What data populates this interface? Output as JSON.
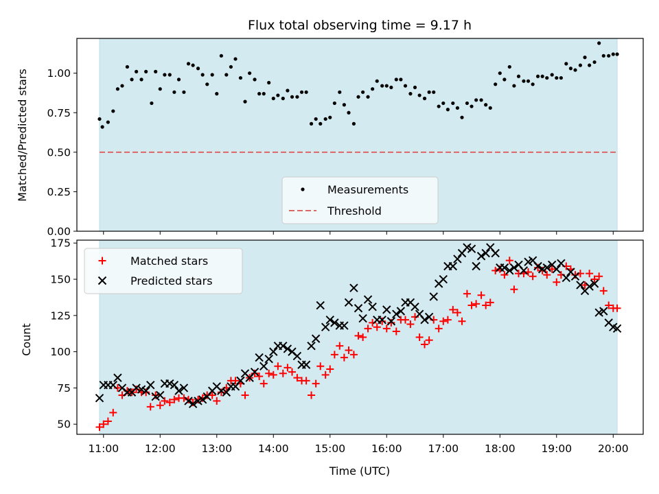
{
  "chart_data": [
    {
      "type": "scatter",
      "title": "Flux total observing time = 9.17 h",
      "xlabel": "",
      "ylabel": "Matched/Predicted stars",
      "ylim": [
        0,
        1.22
      ],
      "yticks": [
        "0.00",
        "0.25",
        "0.50",
        "0.75",
        "1.00"
      ],
      "ytick_values": [
        0,
        0.25,
        0.5,
        0.75,
        1.0
      ],
      "legend_position": "lower-center",
      "threshold": 0.5,
      "colors": {
        "measurements": "#000000",
        "threshold": "#e06666",
        "span": "#d3eaf0"
      },
      "series": [
        {
          "name": "Measurements",
          "points": [
            [
              10.93,
              0.71
            ],
            [
              10.98,
              0.66
            ],
            [
              11.08,
              0.69
            ],
            [
              11.17,
              0.76
            ],
            [
              11.25,
              0.9
            ],
            [
              11.33,
              0.92
            ],
            [
              11.42,
              1.04
            ],
            [
              11.5,
              0.96
            ],
            [
              11.58,
              1.01
            ],
            [
              11.67,
              0.96
            ],
            [
              11.75,
              1.01
            ],
            [
              11.85,
              0.81
            ],
            [
              11.92,
              1.01
            ],
            [
              12.0,
              0.9
            ],
            [
              12.08,
              0.99
            ],
            [
              12.17,
              0.99
            ],
            [
              12.25,
              0.88
            ],
            [
              12.33,
              0.96
            ],
            [
              12.42,
              0.88
            ],
            [
              12.5,
              1.06
            ],
            [
              12.58,
              1.05
            ],
            [
              12.67,
              1.03
            ],
            [
              12.75,
              0.99
            ],
            [
              12.83,
              0.93
            ],
            [
              12.92,
              0.99
            ],
            [
              13.0,
              0.87
            ],
            [
              13.08,
              1.11
            ],
            [
              13.17,
              0.99
            ],
            [
              13.25,
              1.04
            ],
            [
              13.33,
              1.09
            ],
            [
              13.42,
              0.97
            ],
            [
              13.5,
              0.82
            ],
            [
              13.58,
              1.0
            ],
            [
              13.67,
              0.96
            ],
            [
              13.75,
              0.87
            ],
            [
              13.83,
              0.87
            ],
            [
              13.92,
              0.94
            ],
            [
              14.0,
              0.84
            ],
            [
              14.08,
              0.86
            ],
            [
              14.17,
              0.84
            ],
            [
              14.25,
              0.89
            ],
            [
              14.33,
              0.85
            ],
            [
              14.42,
              0.85
            ],
            [
              14.5,
              0.88
            ],
            [
              14.58,
              0.88
            ],
            [
              14.67,
              0.68
            ],
            [
              14.75,
              0.71
            ],
            [
              14.83,
              0.68
            ],
            [
              14.92,
              0.71
            ],
            [
              15.0,
              0.72
            ],
            [
              15.08,
              0.81
            ],
            [
              15.17,
              0.88
            ],
            [
              15.25,
              0.8
            ],
            [
              15.33,
              0.75
            ],
            [
              15.42,
              0.68
            ],
            [
              15.5,
              0.85
            ],
            [
              15.58,
              0.88
            ],
            [
              15.67,
              0.85
            ],
            [
              15.75,
              0.9
            ],
            [
              15.83,
              0.95
            ],
            [
              15.92,
              0.92
            ],
            [
              16.0,
              0.92
            ],
            [
              16.08,
              0.91
            ],
            [
              16.17,
              0.96
            ],
            [
              16.25,
              0.96
            ],
            [
              16.33,
              0.92
            ],
            [
              16.42,
              0.87
            ],
            [
              16.5,
              0.91
            ],
            [
              16.58,
              0.86
            ],
            [
              16.67,
              0.84
            ],
            [
              16.75,
              0.88
            ],
            [
              16.83,
              0.88
            ],
            [
              16.92,
              0.79
            ],
            [
              17.0,
              0.81
            ],
            [
              17.08,
              0.77
            ],
            [
              17.17,
              0.81
            ],
            [
              17.25,
              0.78
            ],
            [
              17.33,
              0.72
            ],
            [
              17.42,
              0.81
            ],
            [
              17.5,
              0.79
            ],
            [
              17.58,
              0.83
            ],
            [
              17.67,
              0.83
            ],
            [
              17.75,
              0.8
            ],
            [
              17.83,
              0.78
            ],
            [
              17.92,
              0.93
            ],
            [
              18.0,
              1.0
            ],
            [
              18.08,
              0.96
            ],
            [
              18.17,
              1.04
            ],
            [
              18.25,
              0.92
            ],
            [
              18.33,
              0.98
            ],
            [
              18.42,
              0.95
            ],
            [
              18.5,
              0.95
            ],
            [
              18.58,
              0.93
            ],
            [
              18.67,
              0.98
            ],
            [
              18.75,
              0.98
            ],
            [
              18.83,
              0.97
            ],
            [
              18.92,
              0.99
            ],
            [
              19.0,
              0.97
            ],
            [
              19.08,
              0.97
            ],
            [
              19.17,
              1.06
            ],
            [
              19.25,
              1.03
            ],
            [
              19.33,
              1.02
            ],
            [
              19.42,
              1.05
            ],
            [
              19.5,
              1.1
            ],
            [
              19.58,
              1.05
            ],
            [
              19.67,
              1.07
            ],
            [
              19.75,
              1.19
            ],
            [
              19.83,
              1.11
            ],
            [
              19.92,
              1.11
            ],
            [
              20.0,
              1.12
            ],
            [
              20.07,
              1.12
            ]
          ]
        },
        {
          "name": "Threshold",
          "x": [
            10.93,
            20.07
          ],
          "values": [
            0.5,
            0.5
          ]
        }
      ]
    },
    {
      "type": "scatter",
      "title": "",
      "xlabel": "Time (UTC)",
      "ylabel": "Count",
      "ylim": [
        43,
        177
      ],
      "yticks": [
        "50",
        "75",
        "100",
        "125",
        "150",
        "175"
      ],
      "ytick_values": [
        50,
        75,
        100,
        125,
        150,
        175
      ],
      "xlim": [
        10.53,
        20.53
      ],
      "xticks": [
        "11:00",
        "12:00",
        "13:00",
        "14:00",
        "15:00",
        "16:00",
        "17:00",
        "18:00",
        "19:00",
        "20:00"
      ],
      "xtick_values": [
        11,
        12,
        13,
        14,
        15,
        16,
        17,
        18,
        19,
        20
      ],
      "span": [
        10.93,
        20.07
      ],
      "legend_position": "upper-left",
      "colors": {
        "matched": "#ff0000",
        "predicted": "#000000"
      },
      "x": [
        10.93,
        11.0,
        11.08,
        11.17,
        11.25,
        11.33,
        11.42,
        11.5,
        11.58,
        11.67,
        11.75,
        11.83,
        11.92,
        12.0,
        12.08,
        12.17,
        12.25,
        12.33,
        12.42,
        12.5,
        12.58,
        12.67,
        12.75,
        12.83,
        12.92,
        13.0,
        13.08,
        13.17,
        13.25,
        13.33,
        13.42,
        13.5,
        13.58,
        13.67,
        13.75,
        13.83,
        13.92,
        14.0,
        14.08,
        14.17,
        14.25,
        14.33,
        14.42,
        14.5,
        14.58,
        14.67,
        14.75,
        14.83,
        14.92,
        15.0,
        15.08,
        15.17,
        15.25,
        15.33,
        15.42,
        15.5,
        15.58,
        15.67,
        15.75,
        15.83,
        15.92,
        16.0,
        16.08,
        16.17,
        16.25,
        16.33,
        16.42,
        16.5,
        16.58,
        16.67,
        16.75,
        16.83,
        16.92,
        17.0,
        17.08,
        17.17,
        17.25,
        17.33,
        17.42,
        17.5,
        17.58,
        17.67,
        17.75,
        17.83,
        17.92,
        18.0,
        18.08,
        18.17,
        18.25,
        18.33,
        18.42,
        18.5,
        18.58,
        18.67,
        18.75,
        18.83,
        18.92,
        19.0,
        19.08,
        19.17,
        19.25,
        19.33,
        19.42,
        19.5,
        19.58,
        19.67,
        19.75,
        19.83,
        19.92,
        20.0,
        20.07
      ],
      "series": [
        {
          "name": "Matched stars",
          "values": [
            48,
            50,
            52,
            58,
            75,
            70,
            73,
            72,
            74,
            72,
            72,
            62,
            70,
            63,
            66,
            65,
            67,
            68,
            68,
            67,
            65,
            67,
            68,
            70,
            70,
            66,
            72,
            75,
            80,
            80,
            78,
            70,
            82,
            85,
            83,
            78,
            85,
            84,
            90,
            85,
            89,
            86,
            82,
            80,
            80,
            70,
            78,
            90,
            84,
            88,
            98,
            104,
            96,
            101,
            98,
            111,
            110,
            116,
            120,
            117,
            121,
            116,
            120,
            114,
            122,
            122,
            119,
            124,
            110,
            105,
            108,
            122,
            116,
            121,
            122,
            129,
            127,
            121,
            140,
            132,
            133,
            139,
            132,
            134,
            156,
            157,
            153,
            163,
            143,
            154,
            154,
            155,
            152,
            158,
            156,
            153,
            157,
            148,
            153,
            159,
            157,
            153,
            154,
            146,
            154,
            150,
            152,
            142,
            132,
            130,
            130
          ]
        },
        {
          "name": "Predicted stars",
          "values": [
            68,
            77,
            77,
            77,
            82,
            75,
            72,
            72,
            75,
            74,
            73,
            77,
            69,
            70,
            78,
            78,
            77,
            73,
            75,
            66,
            64,
            66,
            67,
            69,
            73,
            76,
            73,
            72,
            76,
            76,
            80,
            85,
            82,
            86,
            96,
            90,
            95,
            100,
            104,
            104,
            102,
            100,
            97,
            91,
            91,
            104,
            109,
            132,
            117,
            122,
            120,
            118,
            118,
            134,
            144,
            130,
            123,
            136,
            131,
            122,
            122,
            129,
            121,
            126,
            128,
            134,
            134,
            131,
            126,
            122,
            124,
            138,
            147,
            150,
            159,
            159,
            164,
            168,
            172,
            171,
            159,
            166,
            168,
            172,
            168,
            158,
            158,
            156,
            158,
            160,
            156,
            162,
            163,
            159,
            157,
            158,
            160,
            157,
            161,
            151,
            155,
            152,
            146,
            142,
            145,
            147,
            127,
            128,
            120,
            117,
            116
          ]
        }
      ]
    }
  ]
}
